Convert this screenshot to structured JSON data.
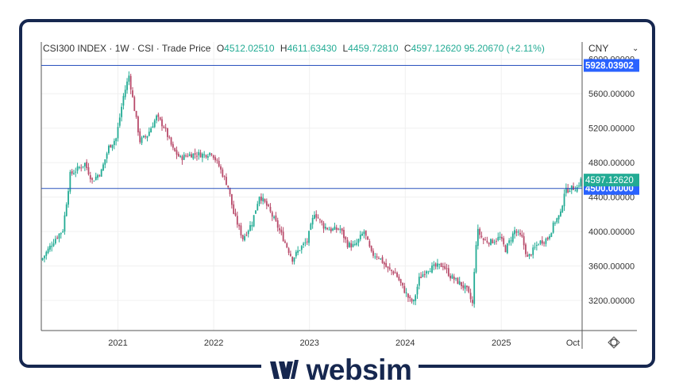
{
  "legend": {
    "symbol": "CSI300 INDEX",
    "interval": "1W",
    "exchange": "CSI",
    "price_type": "Trade Price",
    "open_label": "O",
    "open": "4512.02510",
    "high_label": "H",
    "high": "4611.63430",
    "low_label": "L",
    "low": "4459.72810",
    "close_label": "C",
    "close": "4597.12620",
    "change": "95.20670 (+2.11%)"
  },
  "currency": "CNY",
  "brand": "websim",
  "colors": {
    "up": "#22ab94",
    "down": "#b84a6a",
    "hline": "#2a52be",
    "frame": "#16274f",
    "price_tag": "#22ab94",
    "line_tag": "#2962ff"
  },
  "hlines": [
    {
      "value": 5928.03902,
      "label": "5928.03902"
    },
    {
      "value": 4500.0,
      "label": "4500.00000"
    }
  ],
  "price_tag": {
    "value": 4597.1262,
    "label": "4597.12620"
  },
  "chart_data": {
    "type": "candlestick",
    "title": "CSI300 INDEX · 1W · CSI",
    "ylim": [
      2850,
      6200
    ],
    "y_ticks": [
      "3200.00000",
      "3600.00000",
      "4000.00000",
      "4400.00000",
      "4800.00000",
      "5200.00000",
      "5600.00000",
      "6000.00000"
    ],
    "y_tick_values": [
      3200,
      3600,
      4000,
      4400,
      4800,
      5200,
      5600,
      6000
    ],
    "x_ticks": [
      "2021",
      "2022",
      "2023",
      "2024",
      "2025",
      "Oct"
    ],
    "x_tick_dates": [
      "2021-01-01",
      "2022-01-01",
      "2023-01-01",
      "2024-01-01",
      "2025-01-01",
      "2025-10-01"
    ],
    "x_start": "2020-03-15",
    "x_end": "2025-11-05",
    "grid": true,
    "series": [
      {
        "name": "close",
        "points": [
          [
            "2020-03-20",
            3690
          ],
          [
            "2020-04-10",
            3790
          ],
          [
            "2020-05-08",
            3920
          ],
          [
            "2020-06-05",
            4020
          ],
          [
            "2020-07-03",
            4660
          ],
          [
            "2020-07-24",
            4710
          ],
          [
            "2020-08-28",
            4790
          ],
          [
            "2020-09-25",
            4590
          ],
          [
            "2020-10-30",
            4700
          ],
          [
            "2020-11-27",
            4980
          ],
          [
            "2020-12-25",
            5080
          ],
          [
            "2021-01-22",
            5570
          ],
          [
            "2021-02-12",
            5810
          ],
          [
            "2021-03-05",
            5420
          ],
          [
            "2021-03-26",
            5050
          ],
          [
            "2021-04-23",
            5120
          ],
          [
            "2021-05-28",
            5330
          ],
          [
            "2021-06-25",
            5220
          ],
          [
            "2021-07-30",
            4950
          ],
          [
            "2021-08-27",
            4850
          ],
          [
            "2021-09-24",
            4890
          ],
          [
            "2021-10-29",
            4900
          ],
          [
            "2021-11-26",
            4890
          ],
          [
            "2021-12-24",
            4920
          ],
          [
            "2022-01-21",
            4760
          ],
          [
            "2022-02-25",
            4520
          ],
          [
            "2022-03-18",
            4210
          ],
          [
            "2022-04-22",
            3920
          ],
          [
            "2022-05-27",
            4100
          ],
          [
            "2022-06-24",
            4420
          ],
          [
            "2022-07-22",
            4300
          ],
          [
            "2022-08-26",
            4100
          ],
          [
            "2022-09-23",
            3920
          ],
          [
            "2022-10-28",
            3680
          ],
          [
            "2022-11-25",
            3800
          ],
          [
            "2022-12-23",
            3890
          ],
          [
            "2023-01-20",
            4220
          ],
          [
            "2023-02-24",
            4060
          ],
          [
            "2023-03-24",
            4020
          ],
          [
            "2023-04-28",
            4030
          ],
          [
            "2023-05-26",
            3850
          ],
          [
            "2023-06-23",
            3830
          ],
          [
            "2023-07-28",
            4000
          ],
          [
            "2023-08-25",
            3740
          ],
          [
            "2023-09-22",
            3710
          ],
          [
            "2023-10-27",
            3560
          ],
          [
            "2023-11-24",
            3520
          ],
          [
            "2023-12-22",
            3350
          ],
          [
            "2024-01-19",
            3200
          ],
          [
            "2024-02-02",
            3180
          ],
          [
            "2024-02-23",
            3450
          ],
          [
            "2024-03-22",
            3560
          ],
          [
            "2024-04-26",
            3590
          ],
          [
            "2024-05-24",
            3610
          ],
          [
            "2024-06-21",
            3480
          ],
          [
            "2024-07-26",
            3400
          ],
          [
            "2024-08-23",
            3320
          ],
          [
            "2024-09-13",
            3160
          ],
          [
            "2024-09-30",
            4020
          ],
          [
            "2024-10-25",
            3900
          ],
          [
            "2024-11-22",
            3880
          ],
          [
            "2024-12-27",
            3930
          ],
          [
            "2025-01-17",
            3790
          ],
          [
            "2025-02-21",
            4010
          ],
          [
            "2025-03-21",
            3920
          ],
          [
            "2025-04-11",
            3690
          ],
          [
            "2025-05-23",
            3870
          ],
          [
            "2025-06-27",
            3920
          ],
          [
            "2025-07-25",
            4120
          ],
          [
            "2025-08-15",
            4200
          ],
          [
            "2025-08-29",
            4460
          ],
          [
            "2025-09-19",
            4500
          ],
          [
            "2025-10-17",
            4510
          ],
          [
            "2025-10-31",
            4597
          ]
        ]
      }
    ]
  }
}
